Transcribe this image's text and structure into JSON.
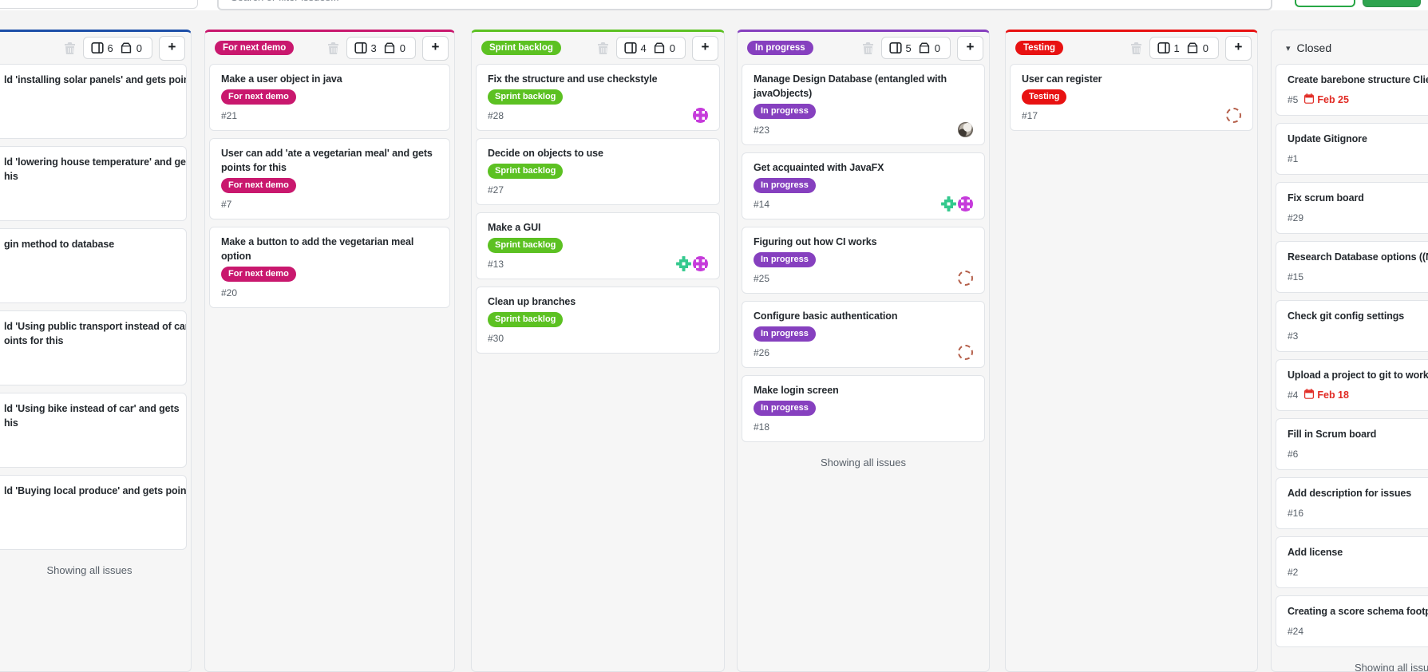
{
  "page": {
    "background": "#f4f4f4",
    "column_background": "#f6f6f6"
  },
  "topbar": {
    "search_placeholder": "Search or filter issues...",
    "outline_button_color": "#28a745",
    "primary_button_color": "#2ea44f"
  },
  "colors": {
    "due_date": "#e12b24",
    "muted_text": "#586069"
  },
  "avatar_colors": {
    "identicon_pink": "#c63bdb",
    "identicon_green": "#35c98e",
    "ring": "#b5604b"
  },
  "columns": [
    {
      "label": null,
      "accent": "#1d4fa8",
      "show_controls": true,
      "collapse_arrow": false,
      "note_count": "6",
      "archive_count": "0",
      "footer": "Showing all issues",
      "cards": [
        {
          "note": true,
          "title": "ld 'installing solar panels' and gets points"
        },
        {
          "note": true,
          "title": "ld 'lowering house temperature' and gets\nhis"
        },
        {
          "note": true,
          "title": "gin method to database"
        },
        {
          "note": true,
          "title": "ld 'Using public transport instead of car'\noints for this"
        },
        {
          "note": true,
          "title": "ld 'Using bike instead of car' and gets\nhis"
        },
        {
          "note": true,
          "title": "ld 'Buying local produce' and gets points"
        }
      ]
    },
    {
      "label": "For next demo",
      "label_color": "#c9186e",
      "accent": "#c9186e",
      "show_controls": true,
      "collapse_arrow": false,
      "note_count": "3",
      "archive_count": "0",
      "footer": null,
      "cards": [
        {
          "title": "Make a user object in java",
          "label": "For next demo",
          "label_color": "#c9186e",
          "number": "#21"
        },
        {
          "title": "User can add 'ate a vegetarian meal' and gets points for this",
          "label": "For next demo",
          "label_color": "#c9186e",
          "number": "#7"
        },
        {
          "title": "Make a button to add the vegetarian meal option",
          "label": "For next demo",
          "label_color": "#c9186e",
          "number": "#20"
        }
      ]
    },
    {
      "label": "Sprint backlog",
      "label_color": "#5cc122",
      "accent": "#5cc122",
      "show_controls": true,
      "collapse_arrow": false,
      "note_count": "4",
      "archive_count": "0",
      "footer": null,
      "cards": [
        {
          "title": "Fix the structure and use checkstyle",
          "label": "Sprint backlog",
          "label_color": "#5cc122",
          "number": "#28",
          "avatars": [
            "identicon-pink"
          ]
        },
        {
          "title": "Decide on objects to use",
          "label": "Sprint backlog",
          "label_color": "#5cc122",
          "number": "#27"
        },
        {
          "title": "Make a GUI",
          "label": "Sprint backlog",
          "label_color": "#5cc122",
          "number": "#13",
          "avatars": [
            "identicon-green",
            "identicon-pink"
          ]
        },
        {
          "title": "Clean up branches",
          "label": "Sprint backlog",
          "label_color": "#5cc122",
          "number": "#30"
        }
      ]
    },
    {
      "label": "In progress",
      "label_color": "#8640bf",
      "accent": "#8640bf",
      "show_controls": true,
      "collapse_arrow": false,
      "note_count": "5",
      "archive_count": "0",
      "footer": "Showing all issues",
      "cards": [
        {
          "title": "Manage Design Database (entangled with javaObjects)",
          "label": "In progress",
          "label_color": "#8640bf",
          "number": "#23",
          "avatars": [
            "photo"
          ]
        },
        {
          "title": "Get acquainted with JavaFX",
          "label": "In progress",
          "label_color": "#8640bf",
          "number": "#14",
          "avatars": [
            "identicon-green",
            "identicon-pink"
          ]
        },
        {
          "title": "Figuring out how CI works",
          "label": "In progress",
          "label_color": "#8640bf",
          "number": "#25",
          "avatars": [
            "ring"
          ]
        },
        {
          "title": "Configure basic authentication",
          "label": "In progress",
          "label_color": "#8640bf",
          "number": "#26",
          "avatars": [
            "ring"
          ]
        },
        {
          "title": "Make login screen",
          "label": "In progress",
          "label_color": "#8640bf",
          "number": "#18"
        }
      ]
    },
    {
      "label": "Testing",
      "label_color": "#e81212",
      "accent": "#e81212",
      "show_controls": true,
      "collapse_arrow": false,
      "note_count": "1",
      "archive_count": "0",
      "footer": null,
      "cards": [
        {
          "title": "User can register",
          "label": "Testing",
          "label_color": "#e81212",
          "number": "#17",
          "avatars": [
            "ring"
          ]
        }
      ]
    },
    {
      "label": "Closed",
      "accent": null,
      "show_controls": false,
      "collapse_arrow": true,
      "footer": "Showing all issues",
      "cards": [
        {
          "title": "Create barebone structure Client-Se",
          "number": "#5",
          "due_date": "Feb 25"
        },
        {
          "title": "Update Gitignore",
          "number": "#1"
        },
        {
          "title": "Fix scrum board",
          "number": "#29"
        },
        {
          "title": "Research Database options ((No)S",
          "number": "#15"
        },
        {
          "title": "Check git config settings",
          "number": "#3"
        },
        {
          "title": "Upload a project to git to work fro",
          "number": "#4",
          "due_date": "Feb 18"
        },
        {
          "title": "Fill in Scrum board",
          "number": "#6"
        },
        {
          "title": "Add description for issues",
          "number": "#16"
        },
        {
          "title": "Add license",
          "number": "#2"
        },
        {
          "title": "Creating a score schema footprint",
          "number": "#24"
        }
      ]
    }
  ]
}
